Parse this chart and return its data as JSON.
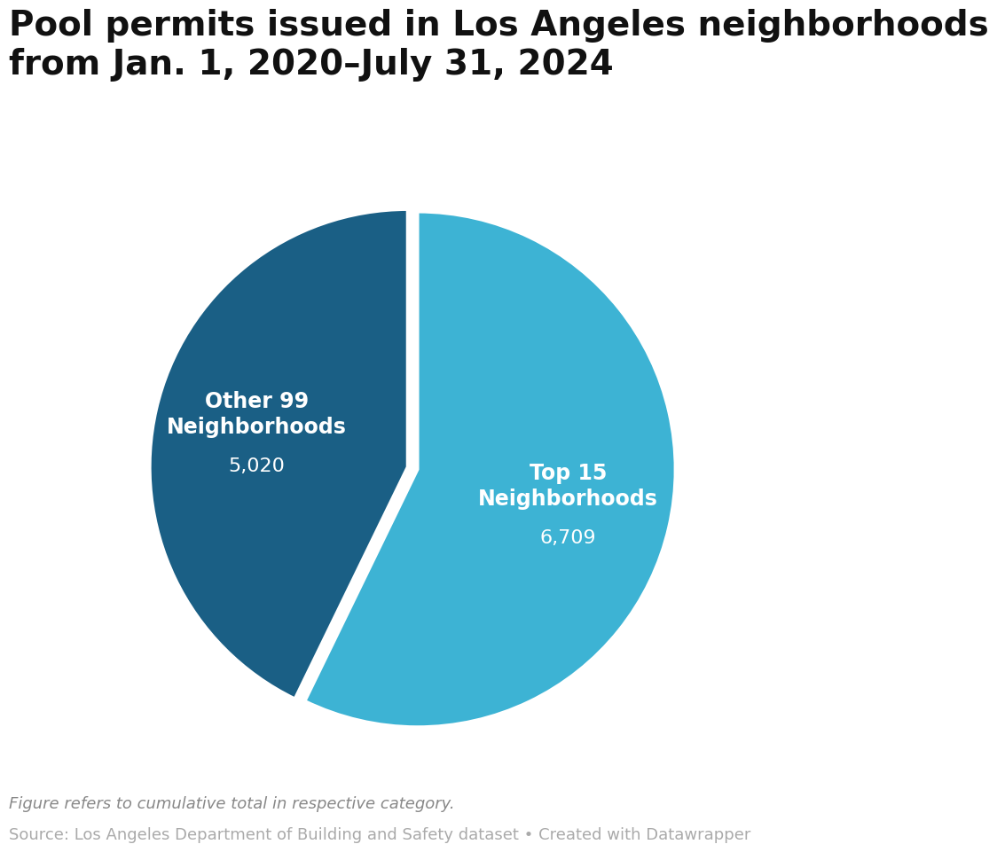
{
  "title": "Pool permits issued in Los Angeles neighborhoods\nfrom Jan. 1, 2020–July 31, 2024",
  "values": [
    6709,
    5020
  ],
  "labels": [
    "Top 15\nNeighborhoods",
    "Other 99\nNeighborhoods"
  ],
  "sublabels": [
    "6,709",
    "5,020"
  ],
  "colors": [
    "#3db3d4",
    "#1a5f85"
  ],
  "startangle": 90,
  "explode": [
    0,
    0.04
  ],
  "note_italic": "Figure refers to cumulative total in respective category.",
  "note_source": "Source: Los Angeles Department of Building and Safety dataset • Created with Datawrapper",
  "background_color": "#ffffff",
  "title_fontsize": 28,
  "label_fontsize": 17,
  "sublabel_fontsize": 16,
  "note_fontsize": 13,
  "source_fontsize": 13
}
